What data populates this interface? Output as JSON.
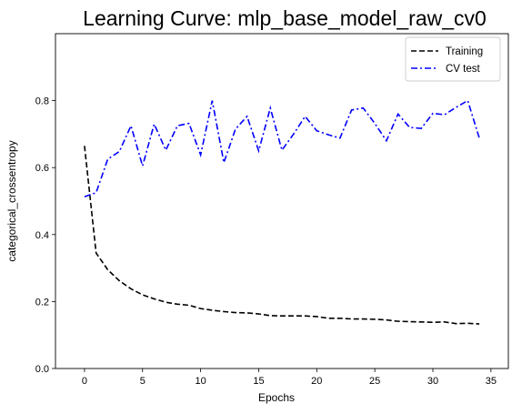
{
  "chart_data": {
    "type": "line",
    "title": "Learning Curve: mlp_base_model_raw_cv0",
    "xlabel": "Epochs",
    "ylabel": "categorical_crossentropy",
    "xlim": [
      -2.5,
      36.5
    ],
    "ylim": [
      0.0,
      1.0
    ],
    "xticks": [
      0,
      5,
      10,
      15,
      20,
      25,
      30,
      35
    ],
    "xtick_labels": [
      "0",
      "5",
      "10",
      "15",
      "20",
      "25",
      "30",
      "35"
    ],
    "yticks": [
      0.0,
      0.2,
      0.4,
      0.6,
      0.8
    ],
    "ytick_labels": [
      "0.0",
      "0.2",
      "0.4",
      "0.6",
      "0.8"
    ],
    "grid": false,
    "legend_position": "top-right",
    "x": [
      0,
      1,
      2,
      3,
      4,
      5,
      6,
      7,
      8,
      9,
      10,
      11,
      12,
      13,
      14,
      15,
      16,
      17,
      18,
      19,
      20,
      21,
      22,
      23,
      24,
      25,
      26,
      27,
      28,
      29,
      30,
      31,
      32,
      33,
      34
    ],
    "series": [
      {
        "name": "Training",
        "color": "#000000",
        "style": "dashed",
        "values": [
          0.665,
          0.345,
          0.295,
          0.262,
          0.238,
          0.22,
          0.208,
          0.198,
          0.192,
          0.189,
          0.179,
          0.174,
          0.17,
          0.167,
          0.166,
          0.163,
          0.158,
          0.157,
          0.157,
          0.157,
          0.155,
          0.15,
          0.15,
          0.148,
          0.148,
          0.147,
          0.145,
          0.141,
          0.14,
          0.139,
          0.138,
          0.139,
          0.134,
          0.135,
          0.133
        ]
      },
      {
        "name": "CV test",
        "color": "#0000ff",
        "style": "dashdot",
        "values": [
          0.513,
          0.525,
          0.625,
          0.648,
          0.725,
          0.605,
          0.73,
          0.652,
          0.725,
          0.732,
          0.638,
          0.8,
          0.615,
          0.715,
          0.753,
          0.65,
          0.778,
          0.652,
          0.7,
          0.753,
          0.71,
          0.698,
          0.688,
          0.772,
          0.778,
          0.732,
          0.68,
          0.76,
          0.72,
          0.717,
          0.762,
          0.758,
          0.78,
          0.8,
          0.688
        ]
      }
    ]
  }
}
